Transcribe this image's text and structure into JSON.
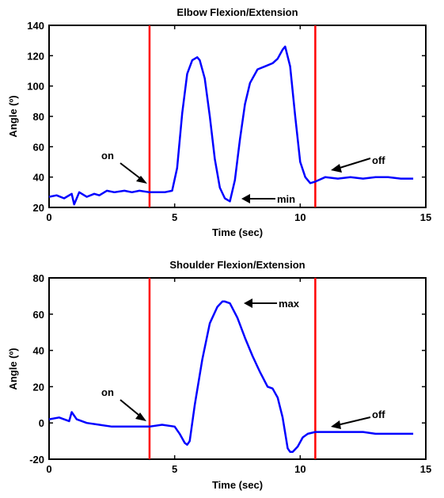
{
  "chart_data": [
    {
      "type": "line",
      "title": "Elbow Flexion/Extension",
      "xlabel": "Time (sec)",
      "ylabel": "Angle (º)",
      "xlim": [
        0,
        15
      ],
      "ylim": [
        20,
        140
      ],
      "xticks": [
        "0",
        "5",
        "10",
        "15"
      ],
      "yticks": [
        "20",
        "40",
        "60",
        "80",
        "100",
        "120",
        "140"
      ],
      "grid": false,
      "colors": {
        "line": "#0000ff",
        "marker": "#ff0000"
      },
      "vlines": [
        4.0,
        10.6
      ],
      "series": [
        {
          "x": [
            0,
            0.3,
            0.6,
            0.9,
            1.0,
            1.2,
            1.5,
            1.8,
            2.0,
            2.3,
            2.6,
            3.0,
            3.3,
            3.6,
            4.0,
            4.3,
            4.6,
            4.9,
            5.1,
            5.3,
            5.5,
            5.7,
            5.9,
            6.0,
            6.2,
            6.4,
            6.6,
            6.8,
            7.0,
            7.1,
            7.2,
            7.4,
            7.6,
            7.8,
            8.0,
            8.3,
            8.6,
            8.9,
            9.1,
            9.3,
            9.4,
            9.6,
            9.8,
            10.0,
            10.2,
            10.4,
            10.6,
            11.0,
            11.5,
            12.0,
            12.5,
            13.0,
            13.5,
            14.0,
            14.5
          ],
          "y": [
            27,
            28,
            26,
            29,
            22,
            30,
            27,
            29,
            28,
            31,
            30,
            31,
            30,
            31,
            30,
            30,
            30,
            31,
            46,
            82,
            108,
            117,
            119,
            117,
            105,
            80,
            52,
            33,
            26,
            25,
            24,
            38,
            65,
            88,
            102,
            111,
            113,
            115,
            118,
            124,
            126,
            113,
            80,
            50,
            40,
            36,
            37,
            40,
            39,
            40,
            39,
            40,
            40,
            39,
            39
          ]
        }
      ],
      "annotations": [
        "on",
        "min",
        "off"
      ]
    },
    {
      "type": "line",
      "title": "Shoulder Flexion/Extension",
      "xlabel": "Time (sec)",
      "ylabel": "Angle (º)",
      "xlim": [
        0,
        15
      ],
      "ylim": [
        -20,
        80
      ],
      "xticks": [
        "0",
        "5",
        "10",
        "15"
      ],
      "yticks": [
        "-20",
        "0",
        "20",
        "40",
        "60",
        "80"
      ],
      "grid": false,
      "colors": {
        "line": "#0000ff",
        "marker": "#ff0000"
      },
      "vlines": [
        4.0,
        10.6
      ],
      "series": [
        {
          "x": [
            0,
            0.4,
            0.8,
            0.9,
            1.1,
            1.5,
            2.0,
            2.5,
            3.0,
            3.5,
            4.0,
            4.5,
            5.0,
            5.2,
            5.4,
            5.5,
            5.6,
            5.8,
            6.1,
            6.4,
            6.7,
            6.9,
            7.0,
            7.2,
            7.5,
            7.8,
            8.1,
            8.4,
            8.7,
            8.9,
            9.1,
            9.3,
            9.5,
            9.6,
            9.7,
            9.9,
            10.1,
            10.3,
            10.6,
            11.0,
            11.5,
            12.0,
            12.5,
            13.0,
            13.5,
            14.0,
            14.5
          ],
          "y": [
            2,
            3,
            1,
            6,
            2,
            0,
            -1,
            -2,
            -2,
            -2,
            -2,
            -1,
            -2,
            -6,
            -11,
            -12,
            -10,
            10,
            35,
            55,
            64,
            67,
            67,
            66,
            58,
            47,
            37,
            28,
            20,
            19,
            14,
            3,
            -14,
            -16,
            -16,
            -13,
            -8,
            -6,
            -5,
            -5,
            -5,
            -5,
            -5,
            -6,
            -6,
            -6,
            -6
          ]
        }
      ],
      "annotations": [
        "on",
        "max",
        "off"
      ]
    }
  ]
}
